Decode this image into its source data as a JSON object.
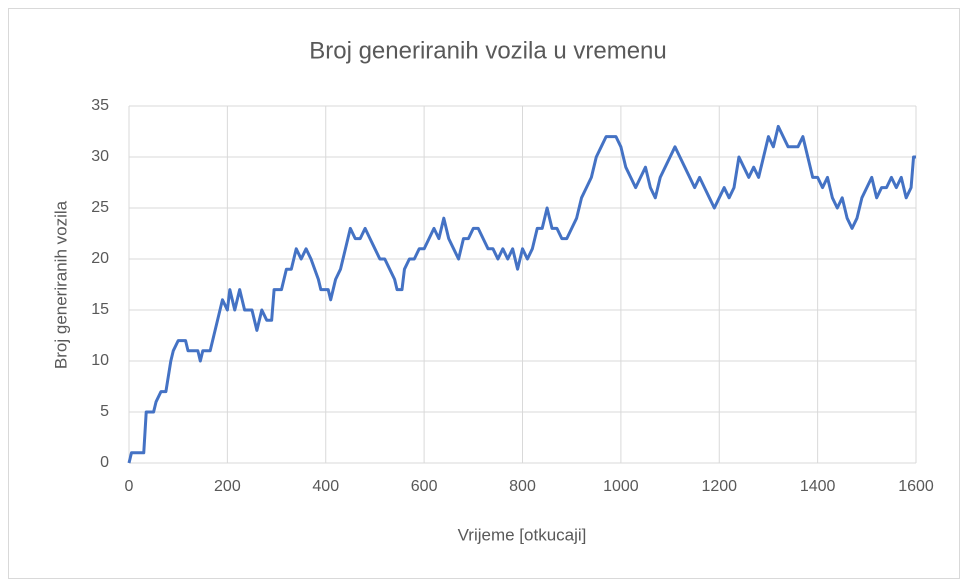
{
  "chart_data": {
    "type": "line",
    "title": "Broj generiranih vozila u vremenu",
    "x_label": "Vrijeme [otkucaji]",
    "y_label": "Broj generiranih vozila",
    "x": [
      0,
      5,
      30,
      35,
      50,
      55,
      65,
      75,
      85,
      90,
      100,
      115,
      120,
      140,
      145,
      150,
      165,
      180,
      190,
      200,
      205,
      215,
      225,
      235,
      250,
      260,
      270,
      280,
      290,
      295,
      310,
      320,
      330,
      340,
      350,
      360,
      370,
      385,
      390,
      405,
      410,
      420,
      430,
      440,
      450,
      460,
      470,
      480,
      490,
      500,
      510,
      520,
      530,
      540,
      545,
      555,
      560,
      570,
      580,
      590,
      600,
      610,
      620,
      630,
      640,
      650,
      660,
      670,
      680,
      690,
      700,
      710,
      720,
      730,
      740,
      750,
      760,
      770,
      780,
      790,
      800,
      810,
      820,
      830,
      840,
      850,
      860,
      870,
      880,
      890,
      900,
      910,
      920,
      930,
      940,
      950,
      960,
      970,
      980,
      990,
      1000,
      1010,
      1020,
      1030,
      1040,
      1050,
      1060,
      1070,
      1080,
      1090,
      1100,
      1110,
      1120,
      1130,
      1140,
      1150,
      1160,
      1170,
      1180,
      1190,
      1200,
      1210,
      1220,
      1230,
      1240,
      1250,
      1260,
      1270,
      1280,
      1290,
      1300,
      1310,
      1320,
      1330,
      1340,
      1350,
      1360,
      1370,
      1380,
      1390,
      1400,
      1410,
      1420,
      1430,
      1440,
      1450,
      1460,
      1470,
      1480,
      1490,
      1500,
      1510,
      1520,
      1530,
      1540,
      1550,
      1560,
      1570,
      1580,
      1590,
      1595,
      1600
    ],
    "values": [
      0,
      1,
      1,
      5,
      5,
      6,
      7,
      7,
      10,
      11,
      12,
      12,
      11,
      11,
      10,
      11,
      11,
      14,
      16,
      15,
      17,
      15,
      17,
      15,
      15,
      13,
      15,
      14,
      14,
      17,
      17,
      19,
      19,
      21,
      20,
      21,
      20,
      18,
      17,
      17,
      16,
      18,
      19,
      21,
      23,
      22,
      22,
      23,
      22,
      21,
      20,
      20,
      19,
      18,
      17,
      17,
      19,
      20,
      20,
      21,
      21,
      22,
      23,
      22,
      24,
      22,
      21,
      20,
      22,
      22,
      23,
      23,
      22,
      21,
      21,
      20,
      21,
      20,
      21,
      19,
      21,
      20,
      21,
      23,
      23,
      25,
      23,
      23,
      22,
      22,
      23,
      24,
      26,
      27,
      28,
      30,
      31,
      32,
      32,
      32,
      31,
      29,
      28,
      27,
      28,
      29,
      27,
      26,
      28,
      29,
      30,
      31,
      30,
      29,
      28,
      27,
      28,
      27,
      26,
      25,
      26,
      27,
      26,
      27,
      30,
      29,
      28,
      29,
      28,
      30,
      32,
      31,
      33,
      32,
      31,
      31,
      31,
      32,
      30,
      28,
      28,
      27,
      28,
      26,
      25,
      26,
      24,
      23,
      24,
      26,
      27,
      28,
      26,
      27,
      27,
      28,
      27,
      28,
      26,
      27,
      30,
      30
    ],
    "color": "#4472c4",
    "xlim": [
      0,
      1600
    ],
    "xticks": [
      0,
      200,
      400,
      600,
      800,
      1000,
      1200,
      1400,
      1600
    ],
    "ylim": [
      0,
      35
    ],
    "yticks": [
      0,
      5,
      10,
      15,
      20,
      25,
      30,
      35
    ],
    "grid": true
  }
}
